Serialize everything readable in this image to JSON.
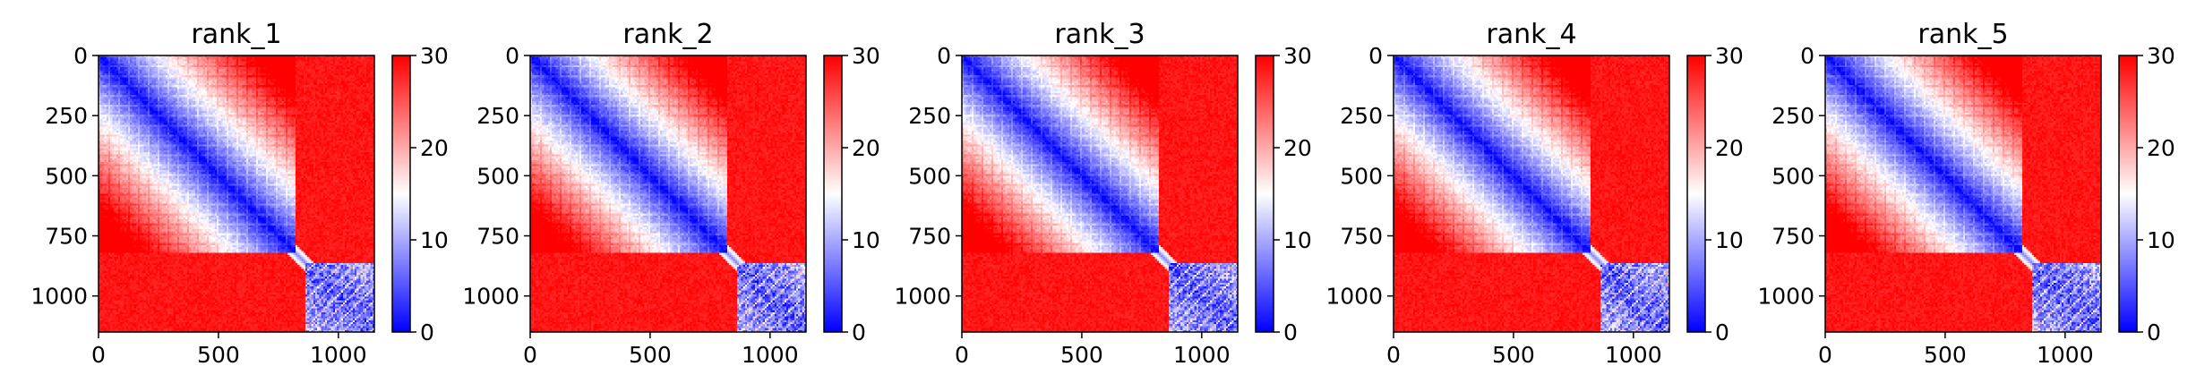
{
  "chart_data": [
    {
      "type": "heatmap",
      "title": "rank_1",
      "xlim": [
        0,
        1150
      ],
      "ylim": [
        1150,
        0
      ],
      "x_ticks": [
        0,
        500,
        1000
      ],
      "y_ticks": [
        0,
        250,
        500,
        750,
        1000
      ],
      "x_tick_labels": [
        "0",
        "500",
        "1000"
      ],
      "y_tick_labels": [
        "0",
        "250",
        "500",
        "750",
        "1000"
      ],
      "colorbar": {
        "range": [
          0,
          30
        ],
        "ticks": [
          0,
          10,
          20,
          30
        ],
        "tick_labels": [
          "0",
          "10",
          "20",
          "30"
        ],
        "colormap": "bwr"
      },
      "blocks": [
        {
          "name": "upper-left",
          "range": [
            0,
            820
          ],
          "structure": "distance-like",
          "diagonal": 0,
          "corner": 30
        },
        {
          "name": "lower-right",
          "range": [
            860,
            1150
          ],
          "structure": "low-striped",
          "value": 5
        },
        {
          "name": "off-diagonal",
          "value": 30
        }
      ]
    },
    {
      "type": "heatmap",
      "title": "rank_2",
      "xlim": [
        0,
        1150
      ],
      "ylim": [
        1150,
        0
      ],
      "x_ticks": [
        0,
        500,
        1000
      ],
      "y_ticks": [
        0,
        250,
        500,
        750,
        1000
      ],
      "x_tick_labels": [
        "0",
        "500",
        "1000"
      ],
      "y_tick_labels": [
        "0",
        "250",
        "500",
        "750",
        "1000"
      ],
      "colorbar": {
        "range": [
          0,
          30
        ],
        "ticks": [
          0,
          10,
          20,
          30
        ],
        "tick_labels": [
          "0",
          "10",
          "20",
          "30"
        ],
        "colormap": "bwr"
      },
      "blocks": [
        {
          "name": "upper-left",
          "range": [
            0,
            820
          ],
          "structure": "distance-like",
          "diagonal": 0,
          "corner": 30
        },
        {
          "name": "lower-right",
          "range": [
            860,
            1150
          ],
          "structure": "low-striped",
          "value": 5
        },
        {
          "name": "off-diagonal",
          "value": 30
        }
      ]
    },
    {
      "type": "heatmap",
      "title": "rank_3",
      "xlim": [
        0,
        1150
      ],
      "ylim": [
        1150,
        0
      ],
      "x_ticks": [
        0,
        500,
        1000
      ],
      "y_ticks": [
        0,
        250,
        500,
        750,
        1000
      ],
      "x_tick_labels": [
        "0",
        "500",
        "1000"
      ],
      "y_tick_labels": [
        "0",
        "250",
        "500",
        "750",
        "1000"
      ],
      "colorbar": {
        "range": [
          0,
          30
        ],
        "ticks": [
          0,
          10,
          20,
          30
        ],
        "tick_labels": [
          "0",
          "10",
          "20",
          "30"
        ],
        "colormap": "bwr"
      },
      "blocks": [
        {
          "name": "upper-left",
          "range": [
            0,
            820
          ],
          "structure": "distance-like",
          "diagonal": 0,
          "corner": 30
        },
        {
          "name": "lower-right",
          "range": [
            860,
            1150
          ],
          "structure": "low-striped",
          "value": 5
        },
        {
          "name": "off-diagonal",
          "value": 30
        }
      ]
    },
    {
      "type": "heatmap",
      "title": "rank_4",
      "xlim": [
        0,
        1150
      ],
      "ylim": [
        1150,
        0
      ],
      "x_ticks": [
        0,
        500,
        1000
      ],
      "y_ticks": [
        0,
        250,
        500,
        750,
        1000
      ],
      "x_tick_labels": [
        "0",
        "500",
        "1000"
      ],
      "y_tick_labels": [
        "0",
        "250",
        "500",
        "750",
        "1000"
      ],
      "colorbar": {
        "range": [
          0,
          30
        ],
        "ticks": [
          0,
          10,
          20,
          30
        ],
        "tick_labels": [
          "0",
          "10",
          "20",
          "30"
        ],
        "colormap": "bwr"
      },
      "blocks": [
        {
          "name": "upper-left",
          "range": [
            0,
            820
          ],
          "structure": "distance-like",
          "diagonal": 0,
          "corner": 30
        },
        {
          "name": "lower-right",
          "range": [
            860,
            1150
          ],
          "structure": "low-striped",
          "value": 5
        },
        {
          "name": "off-diagonal",
          "value": 30
        }
      ]
    },
    {
      "type": "heatmap",
      "title": "rank_5",
      "xlim": [
        0,
        1150
      ],
      "ylim": [
        1150,
        0
      ],
      "x_ticks": [
        0,
        500,
        1000
      ],
      "y_ticks": [
        0,
        250,
        500,
        750,
        1000
      ],
      "x_tick_labels": [
        "0",
        "500",
        "1000"
      ],
      "y_tick_labels": [
        "0",
        "250",
        "500",
        "750",
        "1000"
      ],
      "colorbar": {
        "range": [
          0,
          30
        ],
        "ticks": [
          0,
          10,
          20,
          30
        ],
        "tick_labels": [
          "0",
          "10",
          "20",
          "30"
        ],
        "colormap": "bwr"
      },
      "blocks": [
        {
          "name": "upper-left",
          "range": [
            0,
            820
          ],
          "structure": "distance-like",
          "diagonal": 0,
          "corner": 30
        },
        {
          "name": "lower-right",
          "range": [
            860,
            1150
          ],
          "structure": "low-striped",
          "value": 5
        },
        {
          "name": "off-diagonal",
          "value": 30
        }
      ]
    }
  ]
}
